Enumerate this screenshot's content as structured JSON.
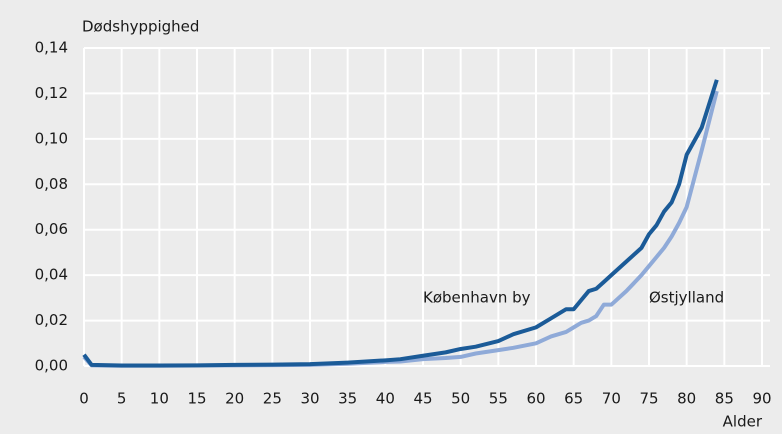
{
  "chart_data": {
    "type": "line",
    "y_label": "Dødshyppighed",
    "x_label": "Alder",
    "annotations": [
      {
        "text": "København by",
        "x": 45,
        "y": 0.03
      },
      {
        "text": "Østjylland",
        "x": 75,
        "y": 0.03
      }
    ],
    "x": [
      0,
      1,
      5,
      10,
      15,
      20,
      25,
      30,
      35,
      40,
      42,
      45,
      48,
      50,
      52,
      55,
      57,
      60,
      62,
      64,
      65,
      66,
      67,
      68,
      69,
      70,
      72,
      74,
      75,
      76,
      77,
      78,
      79,
      80,
      82,
      84
    ],
    "series": [
      {
        "name": "København by",
        "color": "#1b5b98",
        "values": [
          0.005,
          0.0005,
          0.0002,
          0.0002,
          0.0003,
          0.0005,
          0.0006,
          0.0008,
          0.0015,
          0.0025,
          0.003,
          0.0045,
          0.006,
          0.0075,
          0.0085,
          0.011,
          0.014,
          0.017,
          0.021,
          0.025,
          0.025,
          0.029,
          0.033,
          0.034,
          0.037,
          0.04,
          0.046,
          0.052,
          0.058,
          0.062,
          0.068,
          0.072,
          0.08,
          0.093,
          0.105,
          0.126
        ]
      },
      {
        "name": "Østjylland",
        "color": "#8faad8",
        "values": [
          0.004,
          0.0003,
          0.0001,
          0.0001,
          0.0002,
          0.0003,
          0.0004,
          0.0005,
          0.001,
          0.0018,
          0.002,
          0.003,
          0.0035,
          0.004,
          0.0055,
          0.007,
          0.008,
          0.01,
          0.013,
          0.015,
          0.017,
          0.019,
          0.02,
          0.022,
          0.027,
          0.027,
          0.033,
          0.04,
          0.044,
          0.048,
          0.052,
          0.057,
          0.063,
          0.07,
          0.095,
          0.121
        ]
      }
    ],
    "xlim": [
      0,
      90
    ],
    "xticks": [
      0,
      5,
      10,
      15,
      20,
      25,
      30,
      35,
      40,
      45,
      50,
      55,
      60,
      65,
      70,
      75,
      80,
      85,
      90
    ],
    "ylim": [
      0,
      0.14
    ],
    "yticks": [
      {
        "value": 0,
        "label": "0,00"
      },
      {
        "value": 0.02,
        "label": "0,02"
      },
      {
        "value": 0.04,
        "label": "0,04"
      },
      {
        "value": 0.06,
        "label": "0,06"
      },
      {
        "value": 0.08,
        "label": "0,08"
      },
      {
        "value": 0.1,
        "label": "0,10"
      },
      {
        "value": 0.12,
        "label": "0,12"
      },
      {
        "value": 0.14,
        "label": "0,14"
      }
    ],
    "grid": true
  }
}
